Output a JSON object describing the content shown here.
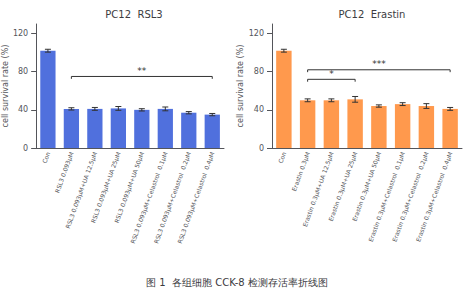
{
  "chart_data": [
    {
      "type": "bar",
      "title": "PC12  RSL3",
      "ylabel": "cell survival rate (%)",
      "categories": [
        "Con",
        "RSL3 0.093μM",
        "RSL3 0.093μM+UA 12.5μM",
        "RSL3 0.093μM+UA 25μM",
        "RSL3 0.093μM+UA 50μM",
        "RSL3 0.093μM+Celastrol  0.1μM",
        "RSL3 0.093μM+Celastrol  0.2μM",
        "RSL3 0.093μM+Celastrol  0.4μM"
      ],
      "values": [
        102,
        41,
        41,
        41.5,
        40,
        41,
        37,
        35
      ],
      "errors": [
        1.5,
        1.2,
        1.5,
        2.0,
        1.2,
        2.0,
        1.2,
        1.2
      ],
      "ylim": [
        0,
        130
      ],
      "yticks": [
        0,
        40,
        80,
        120
      ],
      "grid": false,
      "annotations": [
        {
          "text": "**",
          "from": "RSL3 0.093μM",
          "to": "RSL3 0.093μM+Celastrol  0.4μM",
          "y": 75
        }
      ]
    },
    {
      "type": "bar",
      "title": "PC12  Erastin",
      "ylabel": "cell survival rate (%)",
      "categories": [
        "Con",
        "Erastin 0.3μM",
        "Erastin 0.3μM+UA 12.5μM",
        "Erastin 0.3μM+UA 25μM",
        "Erastin 0.3μM+UA 50μM",
        "Erastin 0.3μM+Celastrol  0.1μM",
        "Erastin 0.3μM+Celastrol  0.2μM",
        "Erastin 0.3μM+Celastrol  0.4μM"
      ],
      "values": [
        102,
        50,
        50,
        51,
        44,
        46,
        44,
        41
      ],
      "errors": [
        1.5,
        1.5,
        1.5,
        3.0,
        1.2,
        1.5,
        2.5,
        1.5
      ],
      "ylim": [
        0,
        130
      ],
      "yticks": [
        0,
        40,
        80,
        120
      ],
      "grid": false,
      "annotations": [
        {
          "text": "*",
          "from": "Erastin 0.3μM",
          "to": "Erastin 0.3μM+UA 25μM",
          "y": 72
        },
        {
          "text": "***",
          "from": "Erastin 0.3μM",
          "to": "Erastin 0.3μM+Celastrol  0.4μM",
          "y": 82
        }
      ]
    }
  ],
  "caption": "图 1  各组细胞 CCK-8 检测存活率折线图"
}
